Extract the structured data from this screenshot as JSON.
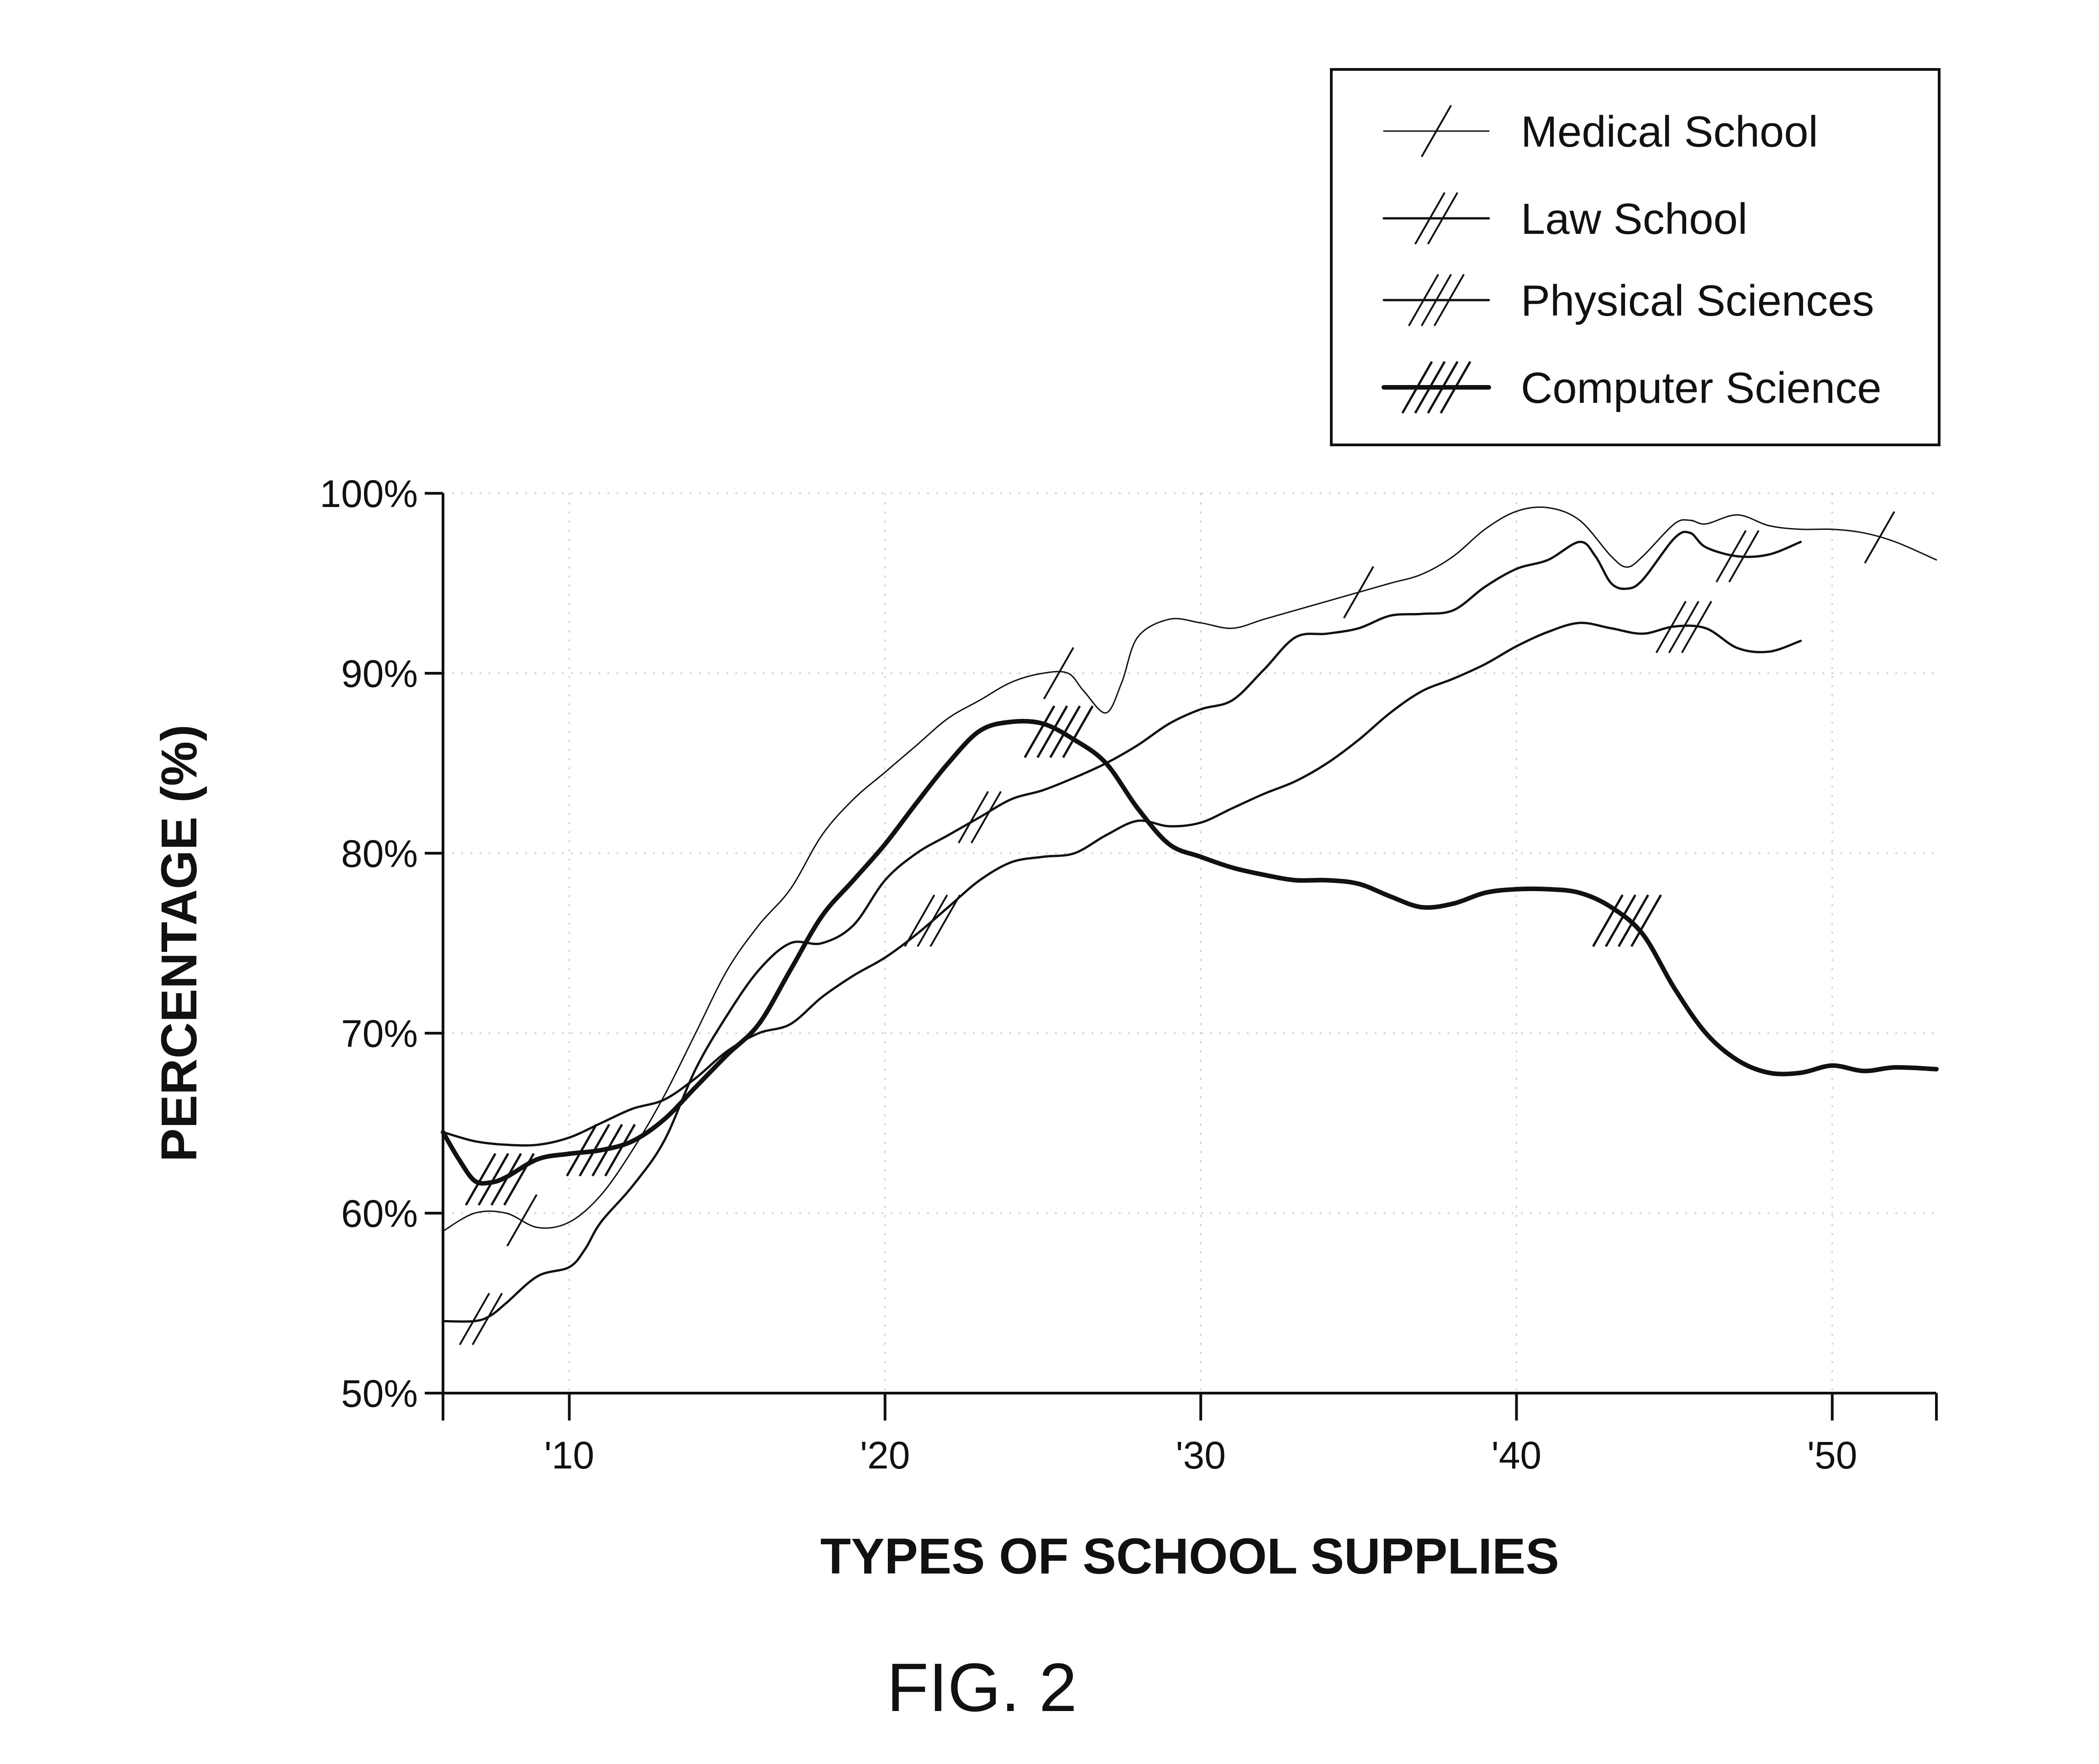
{
  "figure": {
    "label": "FIG. 2"
  },
  "chart_data": {
    "type": "line",
    "title": "",
    "xlabel": "TYPES OF SCHOOL SUPPLIES",
    "ylabel": "PERCENTAGE (%)",
    "xlim": [
      6,
      53.3
    ],
    "ylim": [
      50,
      100
    ],
    "grid": true,
    "legend_position": "top-right",
    "x_ticks": [
      {
        "value": 10,
        "label": "'10"
      },
      {
        "value": 20,
        "label": "'20"
      },
      {
        "value": 30,
        "label": "'30"
      },
      {
        "value": 40,
        "label": "'40"
      },
      {
        "value": 50,
        "label": "'50"
      }
    ],
    "y_ticks": [
      {
        "value": 50,
        "label": "50%"
      },
      {
        "value": 60,
        "label": "60%"
      },
      {
        "value": 70,
        "label": "70%"
      },
      {
        "value": 80,
        "label": "80%"
      },
      {
        "value": 90,
        "label": "90%"
      },
      {
        "value": 100,
        "label": "100%"
      }
    ],
    "series": [
      {
        "name": "Medical School",
        "style": "thin",
        "hatch_count": 1,
        "hatch_at": [
          8.5,
          25.5,
          35,
          51.5
        ],
        "points": [
          [
            6,
            59
          ],
          [
            7,
            60
          ],
          [
            8,
            60
          ],
          [
            9,
            59.2
          ],
          [
            10,
            59.5
          ],
          [
            11,
            61
          ],
          [
            12,
            63.5
          ],
          [
            13,
            66.5
          ],
          [
            14,
            70
          ],
          [
            15,
            73.5
          ],
          [
            16,
            76
          ],
          [
            17,
            78
          ],
          [
            18,
            81
          ],
          [
            19,
            83
          ],
          [
            20,
            84.5
          ],
          [
            21,
            86
          ],
          [
            22,
            87.5
          ],
          [
            23,
            88.5
          ],
          [
            24,
            89.5
          ],
          [
            25,
            90
          ],
          [
            25.8,
            90
          ],
          [
            26.3,
            89
          ],
          [
            27,
            87.8
          ],
          [
            27.5,
            89.5
          ],
          [
            28,
            92
          ],
          [
            29,
            93
          ],
          [
            30,
            92.8
          ],
          [
            31,
            92.5
          ],
          [
            32,
            93
          ],
          [
            33,
            93.5
          ],
          [
            34,
            94
          ],
          [
            35,
            94.5
          ],
          [
            36,
            95
          ],
          [
            37,
            95.5
          ],
          [
            38,
            96.5
          ],
          [
            39,
            98
          ],
          [
            40,
            99
          ],
          [
            41,
            99.2
          ],
          [
            42,
            98.5
          ],
          [
            43,
            96.5
          ],
          [
            43.5,
            95.9
          ],
          [
            44,
            96.5
          ],
          [
            45,
            98.3
          ],
          [
            45.5,
            98.5
          ],
          [
            46,
            98.3
          ],
          [
            47,
            98.8
          ],
          [
            48,
            98.2
          ],
          [
            49,
            98
          ],
          [
            50,
            98
          ],
          [
            51,
            97.8
          ],
          [
            52,
            97.3
          ],
          [
            53.3,
            96.3
          ]
        ]
      },
      {
        "name": "Law School",
        "style": "medium",
        "hatch_count": 2,
        "hatch_at": [
          7.2,
          23,
          47
        ],
        "points": [
          [
            6,
            54
          ],
          [
            7,
            54
          ],
          [
            7.5,
            54.3
          ],
          [
            8,
            55
          ],
          [
            9,
            56.5
          ],
          [
            10,
            57
          ],
          [
            10.5,
            58
          ],
          [
            11,
            59.5
          ],
          [
            12,
            61.5
          ],
          [
            13,
            64
          ],
          [
            14,
            68
          ],
          [
            15,
            71
          ],
          [
            16,
            73.5
          ],
          [
            17,
            75
          ],
          [
            18,
            75
          ],
          [
            19,
            76
          ],
          [
            20,
            78.5
          ],
          [
            21,
            80
          ],
          [
            22,
            81
          ],
          [
            23,
            82
          ],
          [
            24,
            83
          ],
          [
            25,
            83.5
          ],
          [
            26,
            84.2
          ],
          [
            27,
            85
          ],
          [
            28,
            86
          ],
          [
            29,
            87.2
          ],
          [
            30,
            88
          ],
          [
            31,
            88.5
          ],
          [
            32,
            90.2
          ],
          [
            33,
            92
          ],
          [
            34,
            92.2
          ],
          [
            35,
            92.5
          ],
          [
            36,
            93.2
          ],
          [
            37,
            93.3
          ],
          [
            38,
            93.5
          ],
          [
            39,
            94.8
          ],
          [
            40,
            95.8
          ],
          [
            41,
            96.3
          ],
          [
            42,
            97.3
          ],
          [
            42.5,
            96.5
          ],
          [
            43,
            95
          ],
          [
            43.5,
            94.7
          ],
          [
            44,
            95.2
          ],
          [
            45,
            97.5
          ],
          [
            45.5,
            97.8
          ],
          [
            46,
            97
          ],
          [
            47,
            96.5
          ],
          [
            48,
            96.6
          ],
          [
            49,
            97.3
          ]
        ]
      },
      {
        "name": "Physical Sciences",
        "style": "medium",
        "hatch_count": 3,
        "hatch_at": [
          21.5,
          45.3
        ],
        "points": [
          [
            6,
            64.5
          ],
          [
            7,
            64
          ],
          [
            8,
            63.8
          ],
          [
            9,
            63.8
          ],
          [
            10,
            64.2
          ],
          [
            11,
            65
          ],
          [
            12,
            65.8
          ],
          [
            13,
            66.3
          ],
          [
            14,
            67.5
          ],
          [
            15,
            69
          ],
          [
            16,
            70
          ],
          [
            17,
            70.5
          ],
          [
            18,
            72
          ],
          [
            19,
            73.2
          ],
          [
            20,
            74.2
          ],
          [
            21,
            75.5
          ],
          [
            22,
            77
          ],
          [
            23,
            78.5
          ],
          [
            24,
            79.5
          ],
          [
            25,
            79.8
          ],
          [
            26,
            80
          ],
          [
            27,
            81
          ],
          [
            28,
            81.8
          ],
          [
            29,
            81.5
          ],
          [
            30,
            81.7
          ],
          [
            31,
            82.5
          ],
          [
            32,
            83.3
          ],
          [
            33,
            84
          ],
          [
            34,
            85
          ],
          [
            35,
            86.3
          ],
          [
            36,
            87.8
          ],
          [
            37,
            89
          ],
          [
            38,
            89.7
          ],
          [
            39,
            90.5
          ],
          [
            40,
            91.5
          ],
          [
            41,
            92.3
          ],
          [
            42,
            92.8
          ],
          [
            43,
            92.5
          ],
          [
            44,
            92.2
          ],
          [
            45,
            92.6
          ],
          [
            46,
            92.5
          ],
          [
            47,
            91.4
          ],
          [
            48,
            91.2
          ],
          [
            49,
            91.8
          ]
        ]
      },
      {
        "name": "Computer Science",
        "style": "thick",
        "hatch_count": 4,
        "hatch_at": [
          7.8,
          11,
          25.5,
          43.5
        ],
        "points": [
          [
            6,
            64.5
          ],
          [
            6.5,
            63
          ],
          [
            7,
            61.8
          ],
          [
            7.5,
            61.7
          ],
          [
            8,
            62
          ],
          [
            9,
            63
          ],
          [
            10,
            63.3
          ],
          [
            11,
            63.5
          ],
          [
            12,
            64
          ],
          [
            13,
            65.2
          ],
          [
            14,
            67
          ],
          [
            15,
            68.8
          ],
          [
            16,
            70.5
          ],
          [
            17,
            73.5
          ],
          [
            18,
            76.5
          ],
          [
            19,
            78.5
          ],
          [
            20,
            80.5
          ],
          [
            21,
            82.8
          ],
          [
            22,
            85
          ],
          [
            23,
            86.8
          ],
          [
            24,
            87.3
          ],
          [
            25,
            87.2
          ],
          [
            26,
            86.3
          ],
          [
            27,
            85
          ],
          [
            28,
            82.5
          ],
          [
            29,
            80.5
          ],
          [
            30,
            79.8
          ],
          [
            31,
            79.2
          ],
          [
            32,
            78.8
          ],
          [
            33,
            78.5
          ],
          [
            34,
            78.5
          ],
          [
            35,
            78.3
          ],
          [
            36,
            77.6
          ],
          [
            37,
            77
          ],
          [
            38,
            77.2
          ],
          [
            39,
            77.8
          ],
          [
            40,
            78
          ],
          [
            41,
            78
          ],
          [
            42,
            77.8
          ],
          [
            43,
            77
          ],
          [
            44,
            75.5
          ],
          [
            45,
            72.5
          ],
          [
            46,
            70
          ],
          [
            47,
            68.5
          ],
          [
            48,
            67.8
          ],
          [
            49,
            67.8
          ],
          [
            50,
            68.2
          ],
          [
            51,
            67.9
          ],
          [
            52,
            68.1
          ],
          [
            53.3,
            68
          ]
        ]
      }
    ]
  }
}
